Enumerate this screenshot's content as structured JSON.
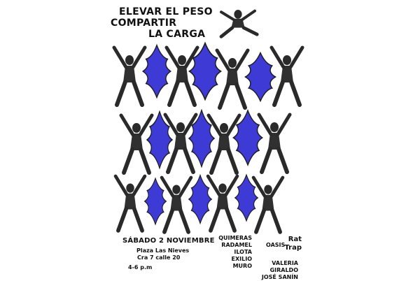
{
  "poster": {
    "title_line1": "ELEVAR EL PESO",
    "title_line2": "COMPARTIR",
    "title_line3": "LA CARGA",
    "date": "SÁBADO 2 NOVIEMBRE",
    "venue": "Plaza Las Nieves",
    "address": "Cra 7 calle 20",
    "hours": "4-6 p.m",
    "artists_col1": [
      "QUIMERAS",
      "RADAMEL",
      "ILOTA",
      "EXILIO",
      "MURO"
    ],
    "artist_oasis": "OASIS",
    "artist_rat": "Rat",
    "artist_trap": "Trap",
    "artist_valeria": "VALERIA GIRALDO",
    "artist_jose": "JOSÉ SANÍN"
  },
  "colors": {
    "accent_blue": "#3d3ad6",
    "figure_dark": "#2a2a2a",
    "background": "#ffffff"
  }
}
